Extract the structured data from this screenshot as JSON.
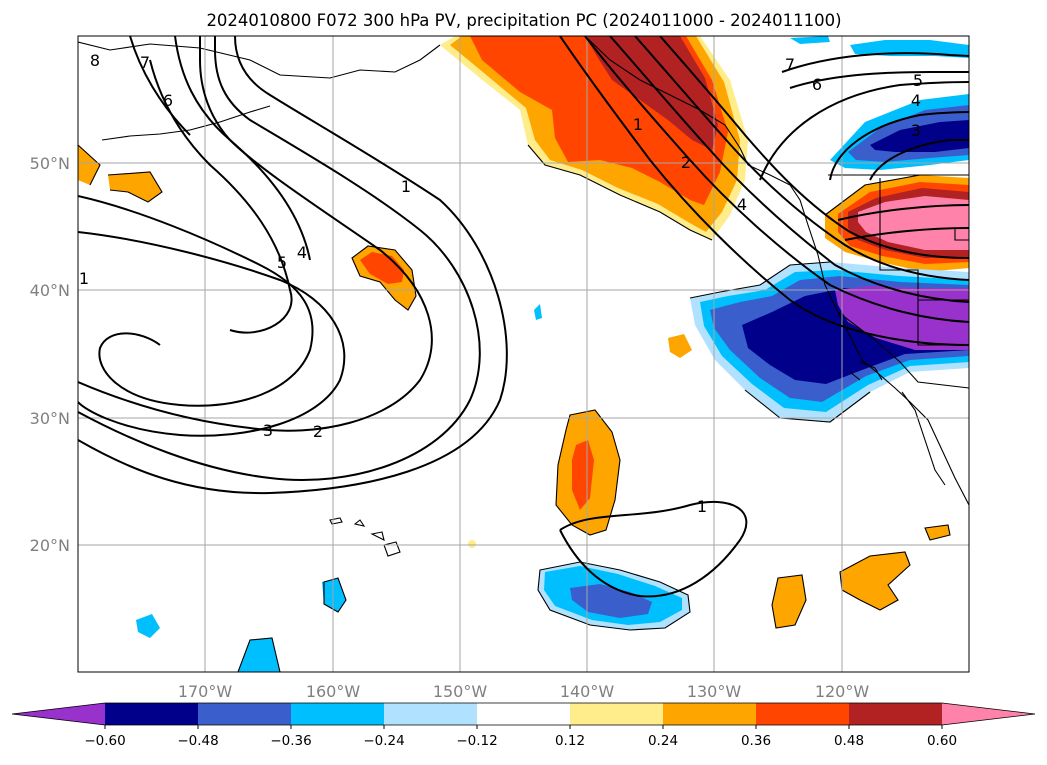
{
  "title": "2024010800 F072 300 hPa PV, precipitation PC (2024011000 - 2024011100)",
  "map": {
    "projection": "PlateCarree",
    "lon_range": [
      -180,
      -110
    ],
    "lat_range": [
      10,
      60
    ],
    "longitude_ticks": [
      {
        "lon": -170,
        "label": "170°W"
      },
      {
        "lon": -160,
        "label": "160°W"
      },
      {
        "lon": -150,
        "label": "150°W"
      },
      {
        "lon": -140,
        "label": "140°W"
      },
      {
        "lon": -130,
        "label": "130°W"
      },
      {
        "lon": -120,
        "label": "120°W"
      }
    ],
    "latitude_ticks": [
      {
        "lat": 50,
        "label": "50°N"
      },
      {
        "lat": 40,
        "label": "40°N"
      },
      {
        "lat": 30,
        "label": "30°N"
      },
      {
        "lat": 20,
        "label": "20°N"
      }
    ],
    "grid": true,
    "label_color": "#808080"
  },
  "pv_contours": {
    "field": "300 hPa PV",
    "levels_labeled": [
      "1",
      "2",
      "3",
      "4",
      "5",
      "6",
      "7",
      "8"
    ],
    "labels": [
      "8",
      "7",
      "6",
      "1",
      "5",
      "4",
      "3",
      "2",
      "1",
      "7",
      "6",
      "5",
      "4",
      "3",
      "1",
      "2",
      "4",
      "1"
    ]
  },
  "precipitation": {
    "field": "precipitation PC",
    "valid_range": "2024011000 - 2024011100"
  },
  "colorbar": {
    "extend": "both",
    "tick_labels": [
      "−0.60",
      "−0.48",
      "−0.36",
      "−0.24",
      "−0.12",
      "0.12",
      "0.24",
      "0.36",
      "0.48",
      "0.60"
    ],
    "colors": [
      "#9932cc",
      "#00008b",
      "#3a5fcd",
      "#00bfff",
      "#b0e2ff",
      "#ffffff",
      "#ffec8b",
      "#ffa500",
      "#ff4500",
      "#b22222",
      "#ff82ab"
    ]
  }
}
